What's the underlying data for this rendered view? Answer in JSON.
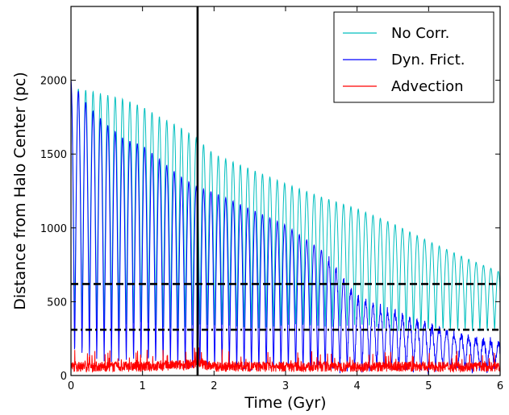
{
  "chart_data": {
    "type": "line",
    "title": "",
    "xlabel": "Time (Gyr)",
    "ylabel": "Distance from Halo Center (pc)",
    "xlim": [
      0,
      6
    ],
    "ylim": [
      0,
      2500
    ],
    "xticks": [
      0,
      1,
      2,
      3,
      4,
      5,
      6
    ],
    "yticks": [
      0,
      500,
      1000,
      1500,
      2000
    ],
    "legend_position": "top-right",
    "series": [
      {
        "name": "No Corr.",
        "color": "#00bfbf",
        "orbit_period_gyr": 0.103,
        "x": [
          0,
          0.25,
          0.5,
          0.75,
          1.0,
          1.25,
          1.5,
          1.75,
          2.0,
          2.5,
          3.0,
          3.5,
          4.0,
          4.5,
          5.0,
          5.5,
          6.0
        ],
        "apocenter": [
          1950,
          1930,
          1900,
          1870,
          1820,
          1750,
          1690,
          1610,
          1500,
          1400,
          1300,
          1210,
          1130,
          1030,
          910,
          800,
          700
        ],
        "pericenter": [
          330,
          320,
          300,
          320,
          310,
          300,
          320,
          330,
          300,
          320,
          310,
          330,
          320,
          300,
          300,
          300,
          300
        ]
      },
      {
        "name": "Dyn. Frict.",
        "color": "#0000ff",
        "orbit_period_gyr": 0.103,
        "x": [
          0,
          0.25,
          0.5,
          0.75,
          1.0,
          1.25,
          1.5,
          1.75,
          2.0,
          2.5,
          3.0,
          3.5,
          4.0,
          4.5,
          5.0,
          5.5,
          6.0
        ],
        "apocenter": [
          2000,
          1820,
          1700,
          1600,
          1560,
          1460,
          1360,
          1280,
          1240,
          1130,
          1020,
          850,
          520,
          420,
          330,
          260,
          220
        ],
        "pericenter": [
          120,
          100,
          90,
          80,
          70,
          60,
          50,
          40,
          40,
          30,
          30,
          30,
          30,
          30,
          30,
          30,
          30
        ]
      },
      {
        "name": "Advection",
        "color": "#ff0000",
        "x": [
          0,
          1,
          1.5,
          1.8,
          2,
          3,
          4,
          5,
          6
        ],
        "mean": [
          60,
          60,
          70,
          80,
          60,
          60,
          60,
          60,
          60
        ],
        "peak": [
          180,
          170,
          220,
          210,
          190,
          170,
          160,
          170,
          160
        ]
      }
    ],
    "reference_lines": [
      {
        "orientation": "horizontal",
        "y": 620,
        "style": "dashed",
        "color": "#000000"
      },
      {
        "orientation": "horizontal",
        "y": 310,
        "style": "dashdot",
        "color": "#000000"
      },
      {
        "orientation": "vertical",
        "x": 1.77,
        "style": "solid",
        "color": "#000000"
      }
    ]
  }
}
